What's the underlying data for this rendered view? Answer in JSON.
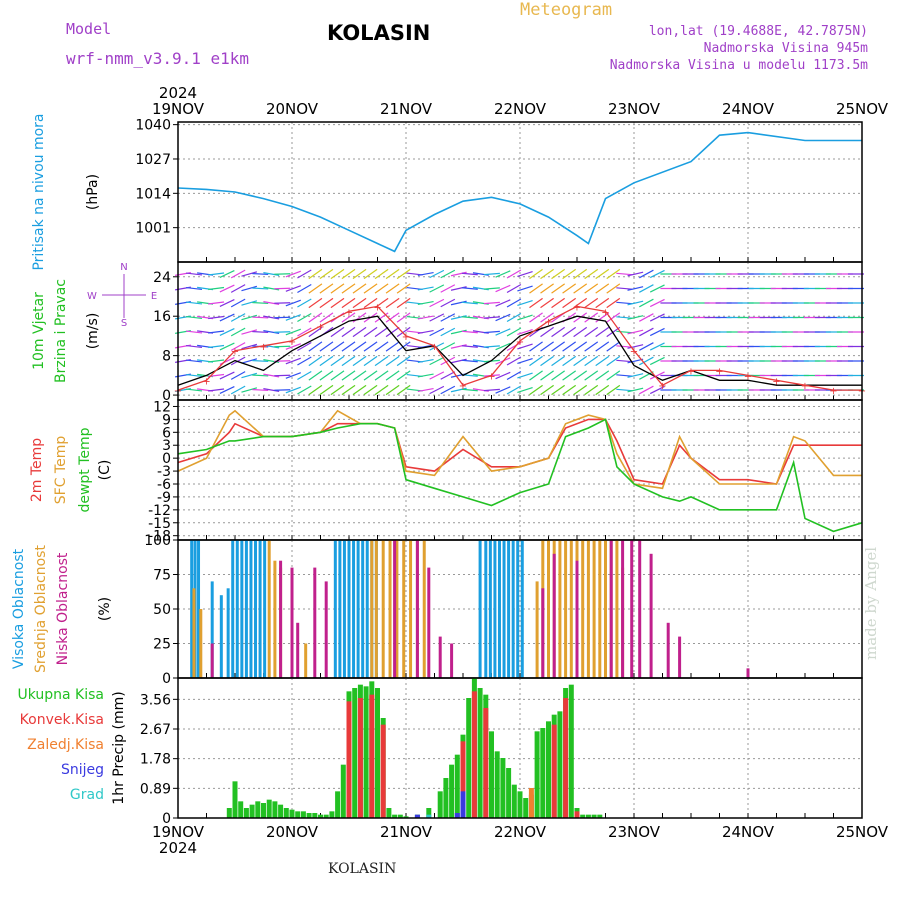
{
  "header": {
    "model_label": "Model",
    "model_name": "wrf-nmm_v3.9.1 e1km",
    "station": "KOLASIN",
    "product": "Meteogram",
    "lonlat": "lon,lat (19.4688E, 42.7875N)",
    "elevation": "Nadmorska Visina 945m",
    "model_elevation": "Nadmorska Visina u modelu 1173.5m",
    "footer": "KOLASIN",
    "credit": "made by Angel"
  },
  "time_axis": {
    "year": "2024",
    "ticks": [
      "19NOV",
      "20NOV",
      "21NOV",
      "22NOV",
      "23NOV",
      "24NOV",
      "25NOV"
    ]
  },
  "colors": {
    "pressure": "#1a9ee0",
    "temp2m": "#e83a3a",
    "sfc_temp": "#e0a030",
    "dewpt": "#22c022",
    "high_cloud": "#1a9ee0",
    "mid_cloud": "#e0a030",
    "low_cloud": "#c0208c",
    "total_precip": "#22c022",
    "conv_precip": "#e83a3a",
    "frz_precip": "#f08030",
    "snow": "#3a3ae0",
    "graupel": "#30c8c8",
    "wind_speed": "#000000",
    "gust": "#e83a3a"
  },
  "chart_data": [
    {
      "type": "line",
      "panel": "pressure",
      "ylabel": [
        "Pritisak na nivou mora",
        "(hPa)"
      ],
      "yticks": [
        1001,
        1014,
        1027,
        1040
      ],
      "ylim": [
        988,
        1041
      ],
      "x_unit": "days since 19NOV 00UTC",
      "series": [
        {
          "name": "",
          "x": [
            0,
            0.25,
            0.5,
            0.75,
            1,
            1.25,
            1.5,
            1.75,
            1.9,
            2,
            2.25,
            2.5,
            2.75,
            3,
            3.25,
            3.5,
            3.6,
            3.75,
            4,
            4.5,
            4.75,
            5,
            5.5,
            6
          ],
          "y": [
            1016,
            1015.5,
            1014.5,
            1012,
            1009,
            1005,
            1000,
            995,
            992,
            1000,
            1006,
            1011,
            1012.5,
            1010,
            1005,
            998,
            995,
            1012,
            1018,
            1026,
            1036,
            1037,
            1034,
            1034
          ]
        }
      ]
    },
    {
      "type": "line",
      "panel": "wind",
      "ylabel": [
        "10m Vjetar",
        "Brzina i Pravac",
        "(m/s)"
      ],
      "direction_key": [
        "N",
        "E",
        "S",
        "W"
      ],
      "yticks": [
        0,
        8,
        16,
        24
      ],
      "ylim": [
        -1,
        27
      ],
      "series": [
        {
          "name": "",
          "x": [
            0,
            0.25,
            0.5,
            0.75,
            1,
            1.25,
            1.5,
            1.75,
            2,
            2.25,
            2.5,
            2.75,
            3,
            3.25,
            3.5,
            3.75,
            4,
            4.25,
            4.5,
            4.75,
            5,
            5.25,
            5.5,
            5.75,
            6
          ],
          "y": [
            2,
            4,
            7,
            5,
            9,
            12,
            15,
            16,
            9,
            10,
            4,
            7,
            12,
            14,
            16,
            15,
            6,
            3,
            5,
            3,
            3,
            2,
            2,
            2,
            2
          ]
        },
        {
          "name": "",
          "x": [
            0,
            0.25,
            0.5,
            0.75,
            1,
            1.25,
            1.5,
            1.75,
            2,
            2.25,
            2.5,
            2.75,
            3,
            3.25,
            3.5,
            3.75,
            4,
            4.25,
            4.5,
            4.75,
            5,
            5.25,
            5.5,
            5.75,
            6
          ],
          "y": [
            1,
            3,
            9,
            10,
            11,
            14,
            17,
            18,
            12,
            10,
            2,
            4,
            11,
            15,
            18,
            17,
            9,
            2,
            5,
            5,
            4,
            3,
            2,
            1,
            1
          ]
        }
      ]
    },
    {
      "type": "line",
      "panel": "temperature",
      "ylabel": [
        "2m Temp",
        "SFC Temp",
        "dewpt Temp",
        "(C)"
      ],
      "yticks": [
        12,
        9,
        6,
        3,
        0,
        -3,
        -6,
        -9,
        -12,
        -15,
        -18
      ],
      "ylim": [
        -19,
        13.5
      ],
      "series": [
        {
          "name": "2m Temp",
          "x": [
            0,
            0.25,
            0.45,
            0.5,
            0.75,
            1,
            1.25,
            1.4,
            1.6,
            1.75,
            1.9,
            2,
            2.25,
            2.5,
            2.75,
            3,
            3.25,
            3.4,
            3.6,
            3.75,
            3.85,
            4,
            4.25,
            4.4,
            4.5,
            4.75,
            5,
            5.25,
            5.4,
            5.5,
            5.75,
            6
          ],
          "y": [
            -1,
            1,
            6,
            8,
            5,
            5,
            6,
            8,
            8,
            8,
            7,
            -2,
            -3,
            2,
            -2,
            -2,
            0,
            7,
            9,
            9,
            4,
            -5,
            -6,
            3,
            0,
            -5,
            -5,
            -6,
            3,
            3,
            3,
            3
          ]
        },
        {
          "name": "SFC Temp",
          "x": [
            0,
            0.25,
            0.45,
            0.5,
            0.75,
            1,
            1.25,
            1.4,
            1.6,
            1.75,
            1.9,
            2,
            2.25,
            2.5,
            2.75,
            3,
            3.25,
            3.4,
            3.6,
            3.75,
            3.85,
            4,
            4.25,
            4.4,
            4.5,
            4.75,
            5,
            5.25,
            5.4,
            5.5,
            5.75,
            6
          ],
          "y": [
            -3,
            0,
            10,
            11,
            5,
            5,
            6,
            11,
            8,
            8,
            7,
            -3,
            -4,
            5,
            -3,
            -2,
            0,
            8,
            10,
            9,
            1,
            -6,
            -7,
            5,
            0,
            -6,
            -6,
            -6,
            5,
            4,
            -4,
            -4
          ]
        },
        {
          "name": "dewpt Temp",
          "x": [
            0,
            0.25,
            0.45,
            0.5,
            0.75,
            1,
            1.25,
            1.4,
            1.6,
            1.75,
            1.9,
            2,
            2.25,
            2.5,
            2.75,
            3,
            3.25,
            3.4,
            3.6,
            3.75,
            3.85,
            4,
            4.25,
            4.4,
            4.5,
            4.75,
            5,
            5.25,
            5.4,
            5.5,
            5.75,
            6
          ],
          "y": [
            1,
            2,
            4,
            4,
            5,
            5,
            6,
            7,
            8,
            8,
            7,
            -5,
            -7,
            -9,
            -11,
            -8,
            -6,
            5,
            7,
            9,
            -2,
            -6,
            -9,
            -10,
            -9,
            -12,
            -12,
            -12,
            -1,
            -14,
            -17,
            -15
          ]
        }
      ]
    },
    {
      "type": "bar",
      "panel": "cloud",
      "ylabel": [
        "Visoka Oblacnost",
        "Srednja Oblacnost",
        "Niska Oblacnost",
        "(%)"
      ],
      "yticks": [
        0,
        25,
        50,
        75,
        100
      ],
      "ylim": [
        0,
        100
      ],
      "series": [
        {
          "name": "Visoka Oblacnost",
          "x": [
            0.12,
            0.15,
            0.18,
            0.3,
            0.38,
            0.44,
            0.48,
            0.52,
            0.56,
            0.6,
            0.64,
            0.68,
            0.72,
            0.76,
            1.38,
            1.42,
            1.46,
            1.5,
            1.54,
            1.58,
            1.62,
            1.66,
            1.7,
            1.74,
            2.65,
            2.7,
            2.74,
            2.78,
            2.82,
            2.86,
            2.9,
            2.94,
            2.98,
            3.02
          ],
          "values": [
            100,
            100,
            100,
            70,
            60,
            65,
            100,
            100,
            100,
            100,
            100,
            100,
            100,
            100,
            100,
            100,
            100,
            100,
            100,
            100,
            100,
            100,
            100,
            100,
            100,
            100,
            100,
            100,
            100,
            100,
            100,
            100,
            100,
            100
          ]
        },
        {
          "name": "Srednja Oblacnost",
          "x": [
            0.14,
            0.2,
            0.8,
            0.85,
            0.9,
            1.12,
            1.7,
            1.74,
            1.8,
            1.86,
            1.92,
            1.98,
            2.04,
            2.1,
            2.16,
            3.15,
            3.2,
            3.25,
            3.3,
            3.35,
            3.4,
            3.45,
            3.5,
            3.55,
            3.6,
            3.65,
            3.7,
            3.75,
            3.8,
            3.85,
            3.9
          ],
          "values": [
            65,
            50,
            100,
            85,
            80,
            25,
            100,
            100,
            100,
            100,
            100,
            100,
            100,
            100,
            100,
            70,
            100,
            100,
            100,
            100,
            100,
            100,
            100,
            100,
            100,
            100,
            100,
            100,
            100,
            100,
            80
          ]
        },
        {
          "name": "Niska Oblacnost",
          "x": [
            0.3,
            0.9,
            1.0,
            1.05,
            1.2,
            1.3,
            1.9,
            2.1,
            2.2,
            2.3,
            2.4,
            3.2,
            3.3,
            3.5,
            3.8,
            3.9,
            3.98,
            4.05,
            4.15,
            4.3,
            4.4,
            5.0
          ],
          "values": [
            25,
            85,
            80,
            40,
            80,
            70,
            100,
            100,
            80,
            30,
            25,
            65,
            90,
            85,
            100,
            100,
            100,
            100,
            90,
            40,
            30,
            7
          ]
        }
      ]
    },
    {
      "type": "bar",
      "panel": "precipitation",
      "ylabel": [
        "Ukupna Kisa",
        "Konvek.Kisa",
        "Zaledj.Kisa",
        "Snijeg",
        "Grad",
        "1hr Precip (mm)"
      ],
      "yticks": [
        0,
        0.89,
        1.78,
        2.67,
        3.56
      ],
      "ylim": [
        0,
        4.2
      ],
      "series": [
        {
          "name": "Ukupna Kisa",
          "x": [
            0.45,
            0.5,
            0.55,
            0.6,
            0.65,
            0.7,
            0.75,
            0.8,
            0.85,
            0.9,
            0.95,
            1.0,
            1.05,
            1.1,
            1.15,
            1.2,
            1.25,
            1.3,
            1.35,
            1.4,
            1.45,
            1.5,
            1.55,
            1.6,
            1.65,
            1.7,
            1.75,
            1.8,
            1.85,
            1.9,
            1.95,
            2.0,
            2.1,
            2.2,
            2.3,
            2.35,
            2.4,
            2.45,
            2.5,
            2.55,
            2.6,
            2.65,
            2.7,
            2.75,
            2.8,
            2.85,
            2.9,
            2.95,
            3.0,
            3.05,
            3.1,
            3.15,
            3.2,
            3.25,
            3.3,
            3.35,
            3.4,
            3.45,
            3.5,
            3.55,
            3.6,
            3.65,
            3.7
          ],
          "values": [
            0.3,
            1.1,
            0.5,
            0.3,
            0.4,
            0.5,
            0.45,
            0.55,
            0.5,
            0.4,
            0.3,
            0.25,
            0.2,
            0.2,
            0.15,
            0.15,
            0.1,
            0.1,
            0.2,
            0.8,
            1.6,
            3.8,
            3.9,
            4.0,
            3.95,
            4.1,
            3.9,
            3.0,
            0.3,
            0.1,
            0.1,
            0.05,
            0.1,
            0.3,
            0.8,
            1.2,
            1.6,
            1.9,
            2.5,
            3.6,
            4.2,
            3.9,
            3.7,
            2.6,
            2.0,
            1.8,
            1.5,
            1.0,
            0.8,
            0.6,
            0.7,
            2.6,
            2.7,
            2.9,
            3.1,
            3.2,
            3.9,
            4.0,
            0.3,
            0.1,
            0.1,
            0.1,
            0.1
          ]
        },
        {
          "name": "Konvek.Kisa",
          "x": [
            1.5,
            1.6,
            1.7,
            1.8,
            2.5,
            2.6,
            2.7,
            3.3,
            3.4,
            3.5
          ],
          "values": [
            3.5,
            3.6,
            3.7,
            2.8,
            2.3,
            3.8,
            3.3,
            2.8,
            3.6,
            0.2
          ]
        },
        {
          "name": "Zaledj.Kisa",
          "x": [
            3.1
          ],
          "values": [
            0.9
          ]
        },
        {
          "name": "Snijeg",
          "x": [
            2.1,
            2.45,
            2.5
          ],
          "values": [
            0.1,
            0.15,
            0.8
          ]
        },
        {
          "name": "Grad",
          "x": [
            2.2
          ],
          "values": [
            0.1
          ]
        }
      ]
    }
  ]
}
